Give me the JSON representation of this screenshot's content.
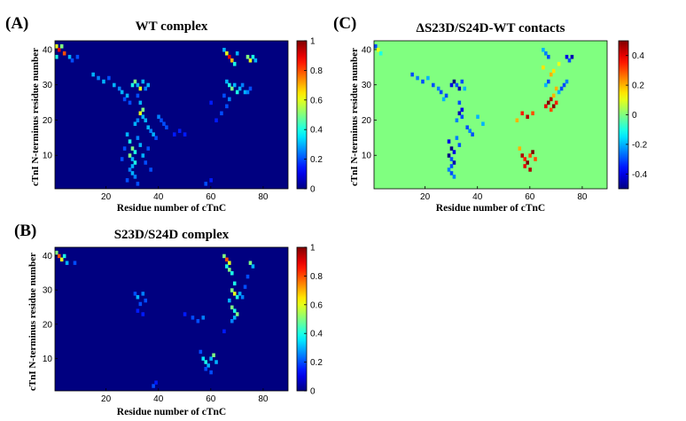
{
  "chart_data": [
    {
      "type": "heatmap",
      "panel": "(A)",
      "title": "WT complex",
      "xlabel": "Residue number of cTnC",
      "ylabel": "cTnI N-terminus residue number",
      "xlim": [
        1,
        89
      ],
      "ylim": [
        1,
        42
      ],
      "xticks": [
        20,
        40,
        60,
        80
      ],
      "yticks": [
        10,
        20,
        30,
        40
      ],
      "colorbar": {
        "min": 0,
        "max": 1,
        "ticks": [
          "0",
          "0.2",
          "0.4",
          "0.6",
          "0.8",
          "1"
        ],
        "values": [
          0,
          0.2,
          0.4,
          0.6,
          0.8,
          1
        ]
      },
      "cells": [
        [
          1,
          41,
          0.6
        ],
        [
          2,
          40,
          0.9
        ],
        [
          3,
          41,
          0.5
        ],
        [
          4,
          39,
          0.8
        ],
        [
          1,
          38,
          0.4
        ],
        [
          6,
          38,
          0.3
        ],
        [
          7,
          37,
          0.2
        ],
        [
          9,
          38,
          0.2
        ],
        [
          15,
          33,
          0.3
        ],
        [
          17,
          32,
          0.25
        ],
        [
          19,
          31,
          0.3
        ],
        [
          21,
          32,
          0.2
        ],
        [
          23,
          30,
          0.3
        ],
        [
          25,
          29,
          0.25
        ],
        [
          26,
          28,
          0.3
        ],
        [
          27,
          26,
          0.2
        ],
        [
          28,
          27,
          0.3
        ],
        [
          29,
          25,
          0.2
        ],
        [
          30,
          30,
          0.4
        ],
        [
          31,
          31,
          0.5
        ],
        [
          32,
          30,
          0.3
        ],
        [
          33,
          29,
          0.6
        ],
        [
          34,
          31,
          0.3
        ],
        [
          35,
          29,
          0.25
        ],
        [
          36,
          30,
          0.3
        ],
        [
          32,
          27,
          0.2
        ],
        [
          33,
          25,
          0.3
        ],
        [
          34,
          23,
          0.5
        ],
        [
          33,
          22,
          0.6
        ],
        [
          34,
          21,
          0.3
        ],
        [
          32,
          20,
          0.25
        ],
        [
          31,
          19,
          0.3
        ],
        [
          35,
          20,
          0.3
        ],
        [
          36,
          18,
          0.3
        ],
        [
          37,
          17,
          0.25
        ],
        [
          38,
          16,
          0.3
        ],
        [
          39,
          15,
          0.2
        ],
        [
          40,
          21,
          0.25
        ],
        [
          41,
          20,
          0.2
        ],
        [
          42,
          19,
          0.2
        ],
        [
          43,
          18,
          0.2
        ],
        [
          46,
          16,
          0.15
        ],
        [
          48,
          17,
          0.15
        ],
        [
          50,
          16,
          0.15
        ],
        [
          28,
          16,
          0.3
        ],
        [
          29,
          14,
          0.4
        ],
        [
          30,
          12,
          0.5
        ],
        [
          31,
          11,
          0.4
        ],
        [
          29,
          10,
          0.5
        ],
        [
          30,
          9,
          0.3
        ],
        [
          31,
          8,
          0.4
        ],
        [
          30,
          7,
          0.3
        ],
        [
          29,
          6,
          0.25
        ],
        [
          30,
          5,
          0.3
        ],
        [
          31,
          4,
          0.25
        ],
        [
          28,
          3,
          0.2
        ],
        [
          32,
          2,
          0.2
        ],
        [
          33,
          13,
          0.3
        ],
        [
          32,
          15,
          0.25
        ],
        [
          34,
          10,
          0.3
        ],
        [
          35,
          8,
          0.2
        ],
        [
          36,
          12,
          0.2
        ],
        [
          37,
          6,
          0.2
        ],
        [
          26,
          9,
          0.2
        ],
        [
          27,
          12,
          0.2
        ],
        [
          65,
          40,
          0.3
        ],
        [
          66,
          39,
          0.6
        ],
        [
          67,
          38,
          0.9
        ],
        [
          68,
          37,
          0.7
        ],
        [
          69,
          36,
          0.4
        ],
        [
          70,
          39,
          0.3
        ],
        [
          74,
          38,
          0.5
        ],
        [
          75,
          37,
          0.6
        ],
        [
          76,
          38,
          0.4
        ],
        [
          77,
          37,
          0.3
        ],
        [
          66,
          31,
          0.3
        ],
        [
          67,
          30,
          0.4
        ],
        [
          68,
          29,
          0.5
        ],
        [
          69,
          30,
          0.3
        ],
        [
          70,
          28,
          0.4
        ],
        [
          71,
          29,
          0.3
        ],
        [
          72,
          30,
          0.25
        ],
        [
          73,
          28,
          0.3
        ],
        [
          74,
          28,
          0.25
        ],
        [
          75,
          29,
          0.2
        ],
        [
          65,
          27,
          0.2
        ],
        [
          67,
          26,
          0.25
        ],
        [
          66,
          24,
          0.2
        ],
        [
          64,
          22,
          0.2
        ],
        [
          62,
          20,
          0.15
        ],
        [
          60,
          25,
          0.15
        ],
        [
          58,
          2,
          0.2
        ],
        [
          60,
          3,
          0.15
        ]
      ]
    },
    {
      "type": "heatmap",
      "panel": "(B)",
      "title": "S23D/S24D complex",
      "xlabel": "Residue number of cTnC",
      "ylabel": "cTnI N-terminus residue number",
      "xlim": [
        1,
        89
      ],
      "ylim": [
        1,
        42
      ],
      "xticks": [
        20,
        40,
        60,
        80
      ],
      "yticks": [
        10,
        20,
        30,
        40
      ],
      "colorbar": {
        "min": 0,
        "max": 1,
        "ticks": [
          "0",
          "0.2",
          "0.4",
          "0.6",
          "0.8",
          "1"
        ],
        "values": [
          0,
          0.2,
          0.4,
          0.6,
          0.8,
          1
        ]
      },
      "cells": [
        [
          1,
          41,
          0.5
        ],
        [
          2,
          40,
          0.8
        ],
        [
          3,
          39,
          0.6
        ],
        [
          4,
          40,
          0.4
        ],
        [
          5,
          38,
          0.3
        ],
        [
          8,
          38,
          0.2
        ],
        [
          31,
          29,
          0.2
        ],
        [
          32,
          28,
          0.3
        ],
        [
          34,
          29,
          0.25
        ],
        [
          33,
          26,
          0.2
        ],
        [
          35,
          27,
          0.2
        ],
        [
          32,
          24,
          0.15
        ],
        [
          34,
          23,
          0.15
        ],
        [
          38,
          2,
          0.2
        ],
        [
          39,
          3,
          0.15
        ],
        [
          50,
          23,
          0.15
        ],
        [
          53,
          22,
          0.2
        ],
        [
          55,
          21,
          0.2
        ],
        [
          57,
          22,
          0.25
        ],
        [
          56,
          12,
          0.2
        ],
        [
          57,
          10,
          0.35
        ],
        [
          58,
          9,
          0.4
        ],
        [
          59,
          8,
          0.3
        ],
        [
          60,
          10,
          0.3
        ],
        [
          61,
          11,
          0.5
        ],
        [
          62,
          9,
          0.3
        ],
        [
          58,
          7,
          0.2
        ],
        [
          60,
          6,
          0.2
        ],
        [
          65,
          40,
          0.5
        ],
        [
          66,
          39,
          0.8
        ],
        [
          67,
          38,
          0.6
        ],
        [
          66,
          37,
          0.4
        ],
        [
          67,
          36,
          0.5
        ],
        [
          68,
          35,
          0.4
        ],
        [
          69,
          32,
          0.4
        ],
        [
          68,
          30,
          0.5
        ],
        [
          69,
          29,
          0.6
        ],
        [
          70,
          28,
          0.4
        ],
        [
          71,
          29,
          0.3
        ],
        [
          72,
          28,
          0.25
        ],
        [
          67,
          27,
          0.3
        ],
        [
          68,
          25,
          0.5
        ],
        [
          69,
          24,
          0.4
        ],
        [
          70,
          23,
          0.5
        ],
        [
          69,
          22,
          0.3
        ],
        [
          68,
          21,
          0.25
        ],
        [
          75,
          38,
          0.5
        ],
        [
          76,
          37,
          0.3
        ],
        [
          74,
          34,
          0.2
        ],
        [
          73,
          31,
          0.2
        ],
        [
          65,
          18,
          0.15
        ]
      ]
    },
    {
      "type": "heatmap",
      "panel": "(C)",
      "title": "ΔS23D/S24D-WT contacts",
      "xlabel": "Residue number of cTnC",
      "ylabel": "cTnI N-terminus residue number",
      "xlim": [
        1,
        89
      ],
      "ylim": [
        1,
        42
      ],
      "xticks": [
        20,
        40,
        60,
        80
      ],
      "yticks": [
        10,
        20,
        30,
        40
      ],
      "colorbar": {
        "min": -0.5,
        "max": 0.5,
        "ticks": [
          "0.4",
          "0.2",
          "0",
          "-0.2",
          "-0.4"
        ],
        "values": [
          0.4,
          0.2,
          0,
          -0.2,
          -0.4
        ]
      },
      "cells": [
        [
          1,
          41,
          -0.3
        ],
        [
          2,
          40,
          0.1
        ],
        [
          3,
          39,
          -0.1
        ],
        [
          15,
          33,
          -0.3
        ],
        [
          17,
          32,
          -0.25
        ],
        [
          19,
          31,
          -0.3
        ],
        [
          21,
          32,
          -0.2
        ],
        [
          23,
          30,
          -0.3
        ],
        [
          25,
          29,
          -0.25
        ],
        [
          26,
          28,
          -0.3
        ],
        [
          27,
          26,
          -0.2
        ],
        [
          28,
          27,
          -0.3
        ],
        [
          30,
          30,
          -0.4
        ],
        [
          31,
          31,
          -0.5
        ],
        [
          32,
          30,
          -0.3
        ],
        [
          33,
          29,
          -0.45
        ],
        [
          34,
          31,
          -0.3
        ],
        [
          35,
          29,
          -0.2
        ],
        [
          33,
          25,
          -0.3
        ],
        [
          34,
          23,
          -0.4
        ],
        [
          33,
          22,
          -0.45
        ],
        [
          34,
          21,
          -0.3
        ],
        [
          32,
          20,
          -0.25
        ],
        [
          36,
          18,
          -0.3
        ],
        [
          37,
          17,
          -0.25
        ],
        [
          38,
          16,
          -0.3
        ],
        [
          40,
          21,
          -0.2
        ],
        [
          42,
          19,
          -0.2
        ],
        [
          29,
          14,
          -0.4
        ],
        [
          30,
          12,
          -0.5
        ],
        [
          31,
          11,
          -0.4
        ],
        [
          29,
          10,
          -0.5
        ],
        [
          30,
          9,
          -0.3
        ],
        [
          31,
          8,
          -0.45
        ],
        [
          30,
          7,
          -0.3
        ],
        [
          29,
          6,
          -0.25
        ],
        [
          30,
          5,
          -0.3
        ],
        [
          31,
          4,
          -0.25
        ],
        [
          33,
          13,
          -0.3
        ],
        [
          32,
          15,
          -0.25
        ],
        [
          57,
          10,
          0.45
        ],
        [
          58,
          9,
          0.35
        ],
        [
          59,
          8,
          0.5
        ],
        [
          60,
          10,
          0.3
        ],
        [
          61,
          11,
          0.5
        ],
        [
          58,
          7,
          0.4
        ],
        [
          60,
          6,
          0.45
        ],
        [
          62,
          9,
          0.3
        ],
        [
          56,
          12,
          0.2
        ],
        [
          57,
          22,
          0.35
        ],
        [
          59,
          21,
          0.45
        ],
        [
          61,
          22,
          0.3
        ],
        [
          55,
          20,
          0.2
        ],
        [
          66,
          24,
          0.4
        ],
        [
          67,
          25,
          0.5
        ],
        [
          68,
          26,
          0.45
        ],
        [
          69,
          24,
          0.5
        ],
        [
          70,
          25,
          0.35
        ],
        [
          68,
          23,
          0.3
        ],
        [
          69,
          27,
          0.2
        ],
        [
          70,
          29,
          0.2
        ],
        [
          71,
          28,
          -0.2
        ],
        [
          72,
          29,
          -0.3
        ],
        [
          73,
          30,
          -0.3
        ],
        [
          74,
          31,
          -0.25
        ],
        [
          67,
          38,
          -0.3
        ],
        [
          66,
          39,
          -0.25
        ],
        [
          65,
          40,
          -0.2
        ],
        [
          74,
          38,
          -0.4
        ],
        [
          75,
          37,
          -0.3
        ],
        [
          76,
          38,
          -0.45
        ],
        [
          68,
          33,
          0.2
        ],
        [
          69,
          34,
          0.15
        ],
        [
          66,
          30,
          -0.2
        ],
        [
          67,
          31,
          -0.3
        ],
        [
          65,
          35,
          0.15
        ],
        [
          71,
          36,
          0.1
        ]
      ]
    }
  ]
}
